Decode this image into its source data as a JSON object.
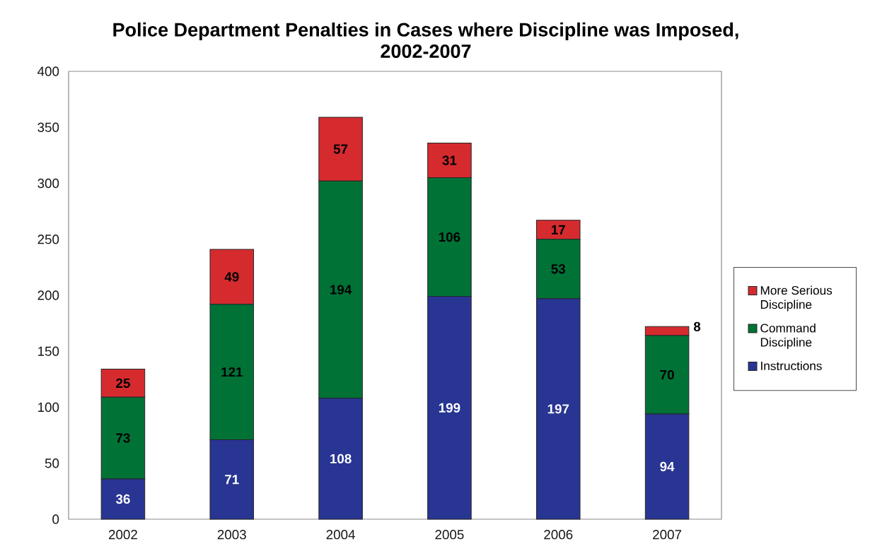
{
  "chart_data": {
    "type": "bar",
    "title": "Police Department Penalties in Cases where Discipline was Imposed, 2002-2007",
    "categories": [
      "2002",
      "2003",
      "2004",
      "2005",
      "2006",
      "2007"
    ],
    "stacked": true,
    "series": [
      {
        "name": "Instructions",
        "color": "#283593",
        "values": [
          36,
          71,
          108,
          199,
          197,
          94
        ]
      },
      {
        "name": "Command Discipline",
        "color": "#007236",
        "values": [
          73,
          121,
          194,
          106,
          53,
          70
        ]
      },
      {
        "name": "More Serious Discipline",
        "color": "#d52b2f",
        "values": [
          25,
          49,
          57,
          31,
          17,
          8
        ]
      }
    ],
    "ylim": [
      0,
      400
    ],
    "yticks": [
      0,
      50,
      100,
      150,
      200,
      250,
      300,
      350,
      400
    ],
    "data_labels": true,
    "legend": "right"
  }
}
